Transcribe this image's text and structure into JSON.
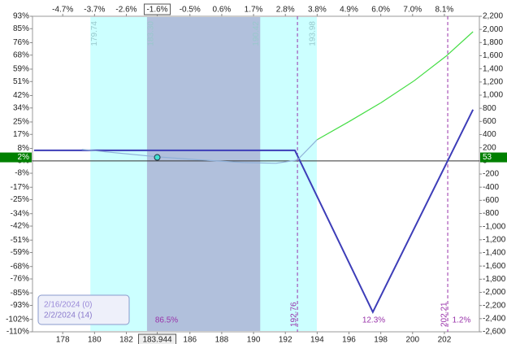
{
  "chart_data": {
    "type": "line",
    "xlim": [
      176.1,
      204.2
    ],
    "xticks": [
      178,
      180,
      182,
      183.944,
      186,
      188,
      190,
      192,
      194,
      196,
      198,
      200,
      202
    ],
    "x2ticks": [
      {
        "value": 178,
        "label": "-4.7%"
      },
      {
        "value": 180,
        "label": "-3.7%"
      },
      {
        "value": 182,
        "label": "-2.6%"
      },
      {
        "value": 183.944,
        "label": "-1.6%"
      },
      {
        "value": 186,
        "label": "-0.5%"
      },
      {
        "value": 188,
        "label": "0.6%"
      },
      {
        "value": 190,
        "label": "1.7%"
      },
      {
        "value": 192,
        "label": "2.8%"
      },
      {
        "value": 194,
        "label": "3.8%"
      },
      {
        "value": 196,
        "label": "4.9%"
      },
      {
        "value": 198,
        "label": "6.0%"
      },
      {
        "value": 200,
        "label": "7.0%"
      },
      {
        "value": 202,
        "label": "8.1%"
      }
    ],
    "ylim": [
      -110,
      93
    ],
    "yticks": [
      {
        "value": 93,
        "label": "93%"
      },
      {
        "value": 85,
        "label": "85%"
      },
      {
        "value": 76,
        "label": "76%"
      },
      {
        "value": 68,
        "label": "68%"
      },
      {
        "value": 59,
        "label": "59%"
      },
      {
        "value": 51,
        "label": "51%"
      },
      {
        "value": 42,
        "label": "42%"
      },
      {
        "value": 34,
        "label": "34%"
      },
      {
        "value": 25,
        "label": "25%"
      },
      {
        "value": 17,
        "label": "17%"
      },
      {
        "value": 8,
        "label": "8%"
      },
      {
        "value": 0,
        "label": "0%"
      },
      {
        "value": -8,
        "label": "-8%"
      },
      {
        "value": -17,
        "label": "-17%"
      },
      {
        "value": -25,
        "label": "-25%"
      },
      {
        "value": -34,
        "label": "-34%"
      },
      {
        "value": -42,
        "label": "-42%"
      },
      {
        "value": -51,
        "label": "-51%"
      },
      {
        "value": -59,
        "label": "-59%"
      },
      {
        "value": -68,
        "label": "-68%"
      },
      {
        "value": -76,
        "label": "-76%"
      },
      {
        "value": -85,
        "label": "-85%"
      },
      {
        "value": -93,
        "label": "-93%"
      },
      {
        "value": -102,
        "label": "-102%"
      },
      {
        "value": -110,
        "label": "-110%"
      }
    ],
    "y2lim": [
      -2600,
      2200
    ],
    "y2ticks": [
      {
        "value": 2200,
        "label": "2,200"
      },
      {
        "value": 2000,
        "label": "2,000"
      },
      {
        "value": 1800,
        "label": "1,800"
      },
      {
        "value": 1600,
        "label": "1,600"
      },
      {
        "value": 1400,
        "label": "1,400"
      },
      {
        "value": 1200,
        "label": "1,200"
      },
      {
        "value": 1000,
        "label": "1,000"
      },
      800,
      600,
      400,
      200,
      0,
      -200,
      -400,
      -600,
      -800,
      {
        "value": -1000,
        "label": "-1,000"
      },
      {
        "value": -1200,
        "label": "-1,200"
      },
      {
        "value": -1400,
        "label": "-1,400"
      },
      {
        "value": -1600,
        "label": "-1,600"
      },
      {
        "value": -1800,
        "label": "-1,800"
      },
      {
        "value": -2000,
        "label": "-2,000"
      },
      {
        "value": -2200,
        "label": "-2,200"
      },
      {
        "value": -2400,
        "label": "-2,400"
      },
      {
        "value": -2600,
        "label": "-2,600"
      }
    ],
    "bands": [
      {
        "from": {
          "value": 179.74,
          "label": "179.74"
        },
        "to": {
          "value": 193.98,
          "label": "193.98"
        },
        "color": "#ccffff"
      },
      {
        "from": {
          "value": 183.3,
          "label": "183.30"
        },
        "to": {
          "value": 190.42,
          "label": "190.42"
        },
        "color": "#b1c0dc"
      }
    ],
    "breakevens": {
      "x": [
        192.76,
        202.21
      ],
      "color": "#9933aa"
    },
    "probabilities": {
      "values": [
        86.5,
        12.3,
        1.2
      ],
      "value_labels": [
        "86.5%",
        "12.3%",
        "1.2%"
      ],
      "color": "#9933aa"
    },
    "current": {
      "x": 183.944,
      "value": 53,
      "percent": 2,
      "percent_label": "2%",
      "color": "#008000"
    },
    "series": [
      {
        "name": "2/16/2024 (0)",
        "color": "#3d3db8",
        "axis": "y2",
        "x": [
          176.2,
          192.6,
          197.5,
          203.8
        ],
        "values": [
          160,
          160,
          -2300,
          780
        ]
      },
      {
        "name": "2/2/2024 (14)",
        "color": "#8fb0d8",
        "profit_color": "#44dd44",
        "axis": "y2",
        "x": [
          179.2,
          183.944,
          186.8,
          189.4,
          191.4,
          192.75,
          194,
          196,
          198,
          200.1,
          202.1,
          203.8
        ],
        "values": [
          174,
          62,
          12,
          -25,
          -37,
          12,
          323,
          597,
          883,
          1219,
          1592,
          1965
        ]
      }
    ]
  }
}
